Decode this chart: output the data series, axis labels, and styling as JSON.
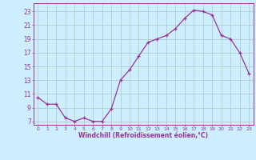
{
  "x": [
    0,
    1,
    2,
    3,
    4,
    5,
    6,
    7,
    8,
    9,
    10,
    11,
    12,
    13,
    14,
    15,
    16,
    17,
    18,
    19,
    20,
    21,
    22,
    23
  ],
  "y": [
    10.5,
    9.5,
    9.5,
    7.5,
    7.0,
    7.5,
    7.0,
    7.0,
    8.8,
    13.0,
    14.5,
    16.5,
    18.5,
    19.0,
    19.5,
    20.5,
    22.0,
    23.2,
    23.0,
    22.5,
    19.5,
    19.0,
    17.0,
    14.0
  ],
  "color": "#993399",
  "bg_color": "#cceeff",
  "grid_color": "#b0cccc",
  "xlabel": "Windchill (Refroidissement éolien,°C)",
  "xlim": [
    -0.5,
    23.5
  ],
  "ylim": [
    6.5,
    24.2
  ],
  "xticks": [
    0,
    1,
    2,
    3,
    4,
    5,
    6,
    7,
    8,
    9,
    10,
    11,
    12,
    13,
    14,
    15,
    16,
    17,
    18,
    19,
    20,
    21,
    22,
    23
  ],
  "yticks": [
    7,
    9,
    11,
    13,
    15,
    17,
    19,
    21,
    23
  ],
  "marker": "+"
}
